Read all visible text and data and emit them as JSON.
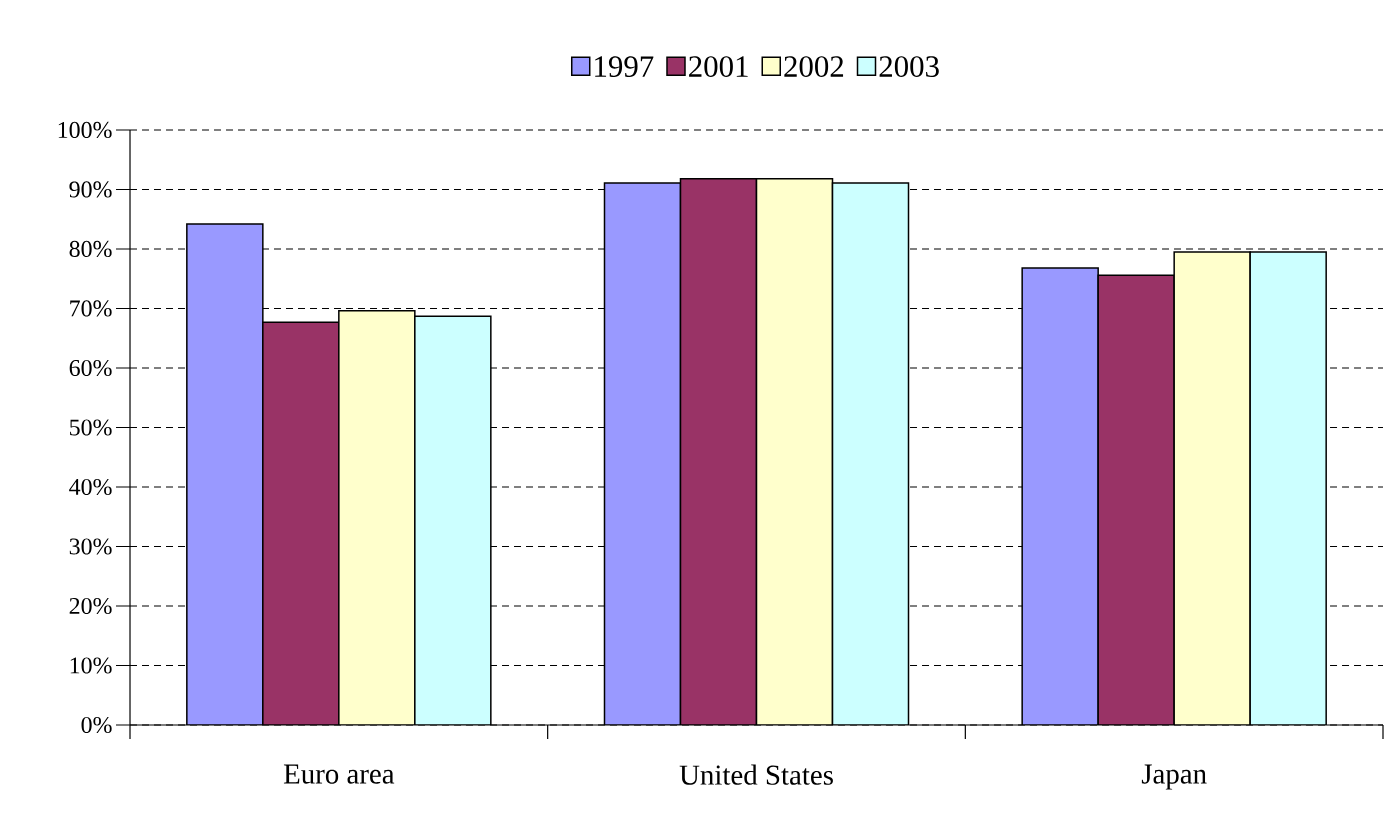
{
  "chart_data": {
    "type": "bar",
    "categories": [
      "Euro area",
      "United States",
      "Japan"
    ],
    "series": [
      {
        "name": "1997",
        "color": "#9999ff",
        "values": [
          84.2,
          91.1,
          76.8
        ]
      },
      {
        "name": "2001",
        "color": "#993366",
        "values": [
          67.7,
          91.8,
          75.6
        ]
      },
      {
        "name": "2002",
        "color": "#ffffcc",
        "values": [
          69.6,
          91.8,
          79.5
        ]
      },
      {
        "name": "2003",
        "color": "#ccffff",
        "values": [
          68.7,
          91.1,
          79.5
        ]
      }
    ],
    "ylim": [
      0,
      100
    ],
    "yticks": [
      {
        "value": 0,
        "label": "0%"
      },
      {
        "value": 10,
        "label": "10%"
      },
      {
        "value": 20,
        "label": "20%"
      },
      {
        "value": 30,
        "label": "30%"
      },
      {
        "value": 40,
        "label": "40%"
      },
      {
        "value": 50,
        "label": "50%"
      },
      {
        "value": 60,
        "label": "60%"
      },
      {
        "value": 70,
        "label": "70%"
      },
      {
        "value": 80,
        "label": "80%"
      },
      {
        "value": 90,
        "label": "90%"
      },
      {
        "value": 100,
        "label": "100%"
      }
    ],
    "grid": "y",
    "legend": "top"
  }
}
